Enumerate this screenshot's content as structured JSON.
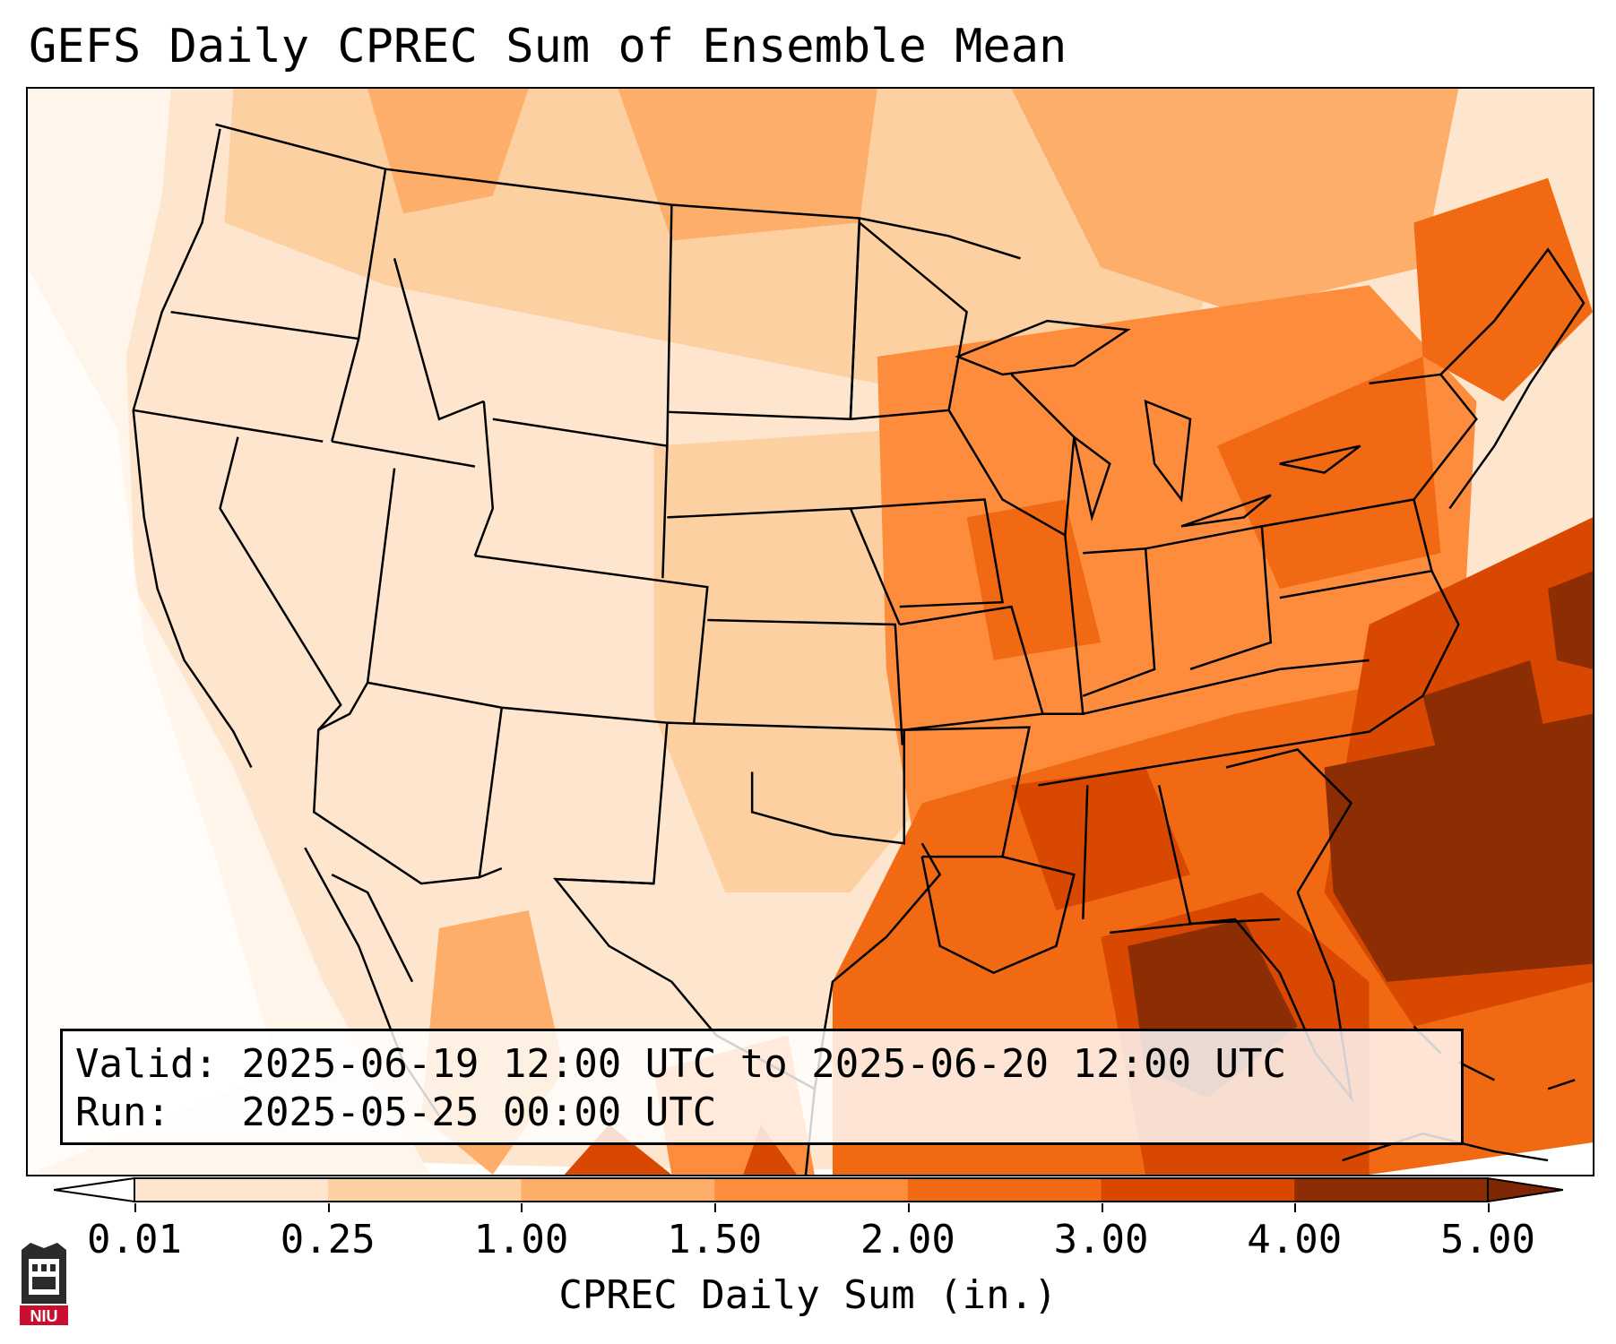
{
  "title": "GEFS Daily CPREC Sum of Ensemble Mean",
  "info": {
    "valid_label": "Valid:",
    "valid_value": "2025-06-19 12:00 UTC to 2025-06-20 12:00 UTC",
    "run_label": "Run:",
    "run_value": "2025-05-25 00:00 UTC"
  },
  "colorbar": {
    "label": "CPREC Daily Sum (in.)",
    "ticks": [
      "0.01",
      "0.25",
      "1.00",
      "1.50",
      "2.00",
      "3.00",
      "4.00",
      "5.00"
    ],
    "colors": [
      "#fff5eb",
      "#fee6ce",
      "#fdd0a2",
      "#fdae6b",
      "#fd8d3c",
      "#f16913",
      "#d94801",
      "#8c2d04"
    ],
    "under_color": "#ffffff",
    "over_color": "#7f2704"
  },
  "logo": {
    "text": "NIU",
    "color": "#c8102e"
  }
}
